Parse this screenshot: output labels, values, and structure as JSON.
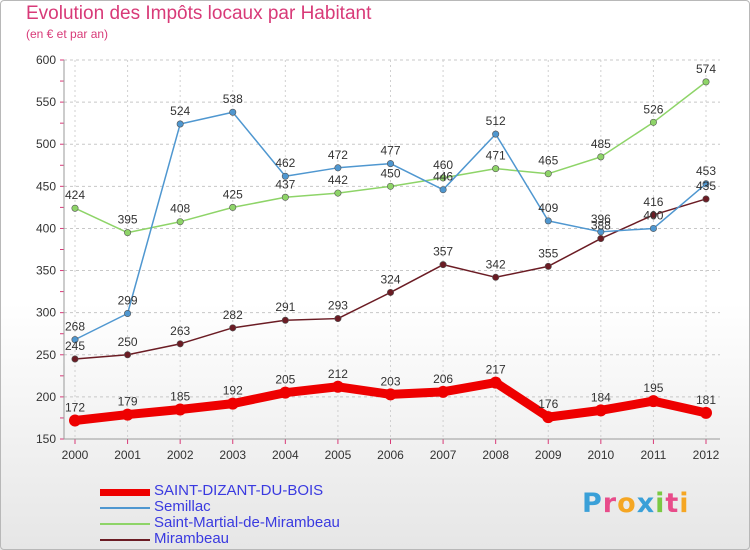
{
  "header": {
    "title": "Evolution des Impôts locaux par Habitant",
    "subtitle": "(en € et par an)"
  },
  "chart_data": {
    "type": "line",
    "title": "Evolution des Impôts locaux par Habitant",
    "subtitle": "(en € et par an)",
    "xlabel": "",
    "ylabel": "",
    "x": [
      "2000",
      "2001",
      "2002",
      "2003",
      "2004",
      "2005",
      "2006",
      "2007",
      "2008",
      "2009",
      "2010",
      "2011",
      "2012"
    ],
    "ylim": [
      150,
      600
    ],
    "yticks": [
      150,
      200,
      250,
      300,
      350,
      400,
      450,
      500,
      550,
      600
    ],
    "grid": "horizontal dashed",
    "legend_position": "bottom-left",
    "series": [
      {
        "name": "SAINT-DIZANT-DU-BOIS",
        "color": "#ee0000",
        "values": [
          172,
          179,
          185,
          192,
          205,
          212,
          203,
          206,
          217,
          176,
          184,
          195,
          181
        ]
      },
      {
        "name": "Semillac",
        "color": "#4f97d0",
        "values": [
          268,
          299,
          524,
          538,
          462,
          472,
          477,
          446,
          512,
          409,
          396,
          400,
          453
        ]
      },
      {
        "name": "Saint-Martial-de-Mirambeau",
        "color": "#8ed468",
        "values": [
          424,
          395,
          408,
          425,
          437,
          442,
          450,
          460,
          471,
          465,
          485,
          526,
          574
        ]
      },
      {
        "name": "Mirambeau",
        "color": "#6b1c24",
        "values": [
          245,
          250,
          263,
          282,
          291,
          293,
          324,
          357,
          342,
          355,
          388,
          416,
          435
        ]
      }
    ],
    "data_labels": [
      [
        "172",
        "179",
        "185",
        "192",
        "205",
        "212",
        "203",
        "206",
        "217",
        "176",
        "184",
        "195",
        "181"
      ],
      [
        "268",
        "299",
        "524",
        "538",
        "462",
        "472",
        "477",
        "446",
        "512",
        "409",
        "396",
        "400",
        "453"
      ],
      [
        "424",
        "395",
        "408",
        "425",
        "437",
        "442",
        "450",
        "460",
        "471",
        "465",
        "485",
        "526",
        "574"
      ],
      [
        "245",
        "250",
        "263",
        "282",
        "291",
        "293",
        "324",
        "357",
        "342",
        "355",
        "388",
        "416",
        "435"
      ]
    ]
  },
  "legend": {
    "items": [
      {
        "label": "SAINT-DIZANT-DU-BOIS",
        "color": "#ee0000"
      },
      {
        "label": "Semillac",
        "color": "#4f97d0"
      },
      {
        "label": "Saint-Martial-de-Mirambeau",
        "color": "#8ed468"
      },
      {
        "label": "Mirambeau",
        "color": "#6b1c24"
      }
    ]
  },
  "logo": {
    "letters": [
      "P",
      "r",
      "o",
      "x",
      "i",
      "t",
      "i"
    ],
    "colors": [
      "#3aa0d8",
      "#e84c8a",
      "#f5a623",
      "#3aa0d8",
      "#7ac943",
      "#e84c8a",
      "#f5a623"
    ]
  }
}
